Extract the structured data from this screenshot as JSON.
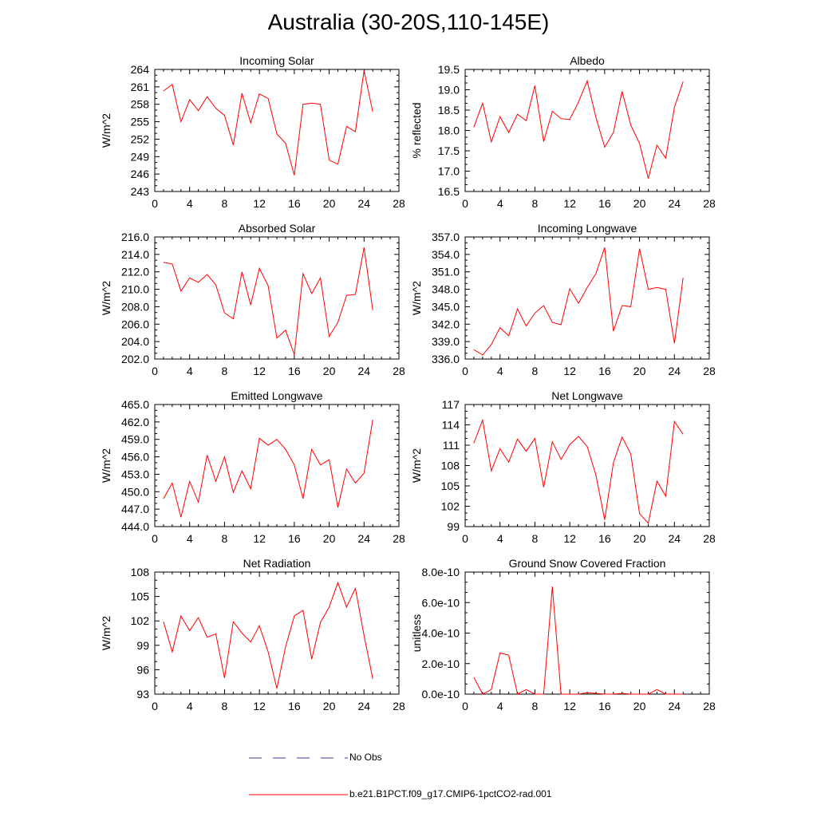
{
  "title": "Australia (30-20S,110-145E)",
  "colors": {
    "model": "#ff0000",
    "obs": "#3a3aa8",
    "axis": "#000000"
  },
  "legend": [
    {
      "label": "No Obs",
      "style": "dashed",
      "color": "#3a3aa8"
    },
    {
      "label": "b.e21.B1PCT.f09_g17.CMIP6-1pctCO2-rad.001",
      "style": "solid",
      "color": "#ff0000"
    }
  ],
  "chart_data": [
    {
      "type": "line",
      "title": "Incoming Solar",
      "ylabel": "W/m^2",
      "xlim": [
        0,
        28
      ],
      "xticks": [
        "0",
        "4",
        "8",
        "12",
        "16",
        "20",
        "24",
        "28"
      ],
      "ylim": [
        243,
        264
      ],
      "yticks": [
        "243",
        "246",
        "249",
        "252",
        "255",
        "258",
        "261",
        "264"
      ],
      "x": [
        1,
        2,
        3,
        4,
        5,
        6,
        7,
        8,
        9,
        10,
        11,
        12,
        13,
        14,
        15,
        16,
        17,
        18,
        19,
        20,
        21,
        22,
        23,
        24,
        25
      ],
      "series": [
        {
          "values": [
            260.3,
            261.4,
            255.0,
            258.8,
            256.9,
            259.3,
            257.3,
            256.1,
            251.0,
            259.9,
            254.8,
            259.8,
            259.0,
            252.9,
            251.3,
            245.8,
            258.0,
            258.2,
            258.0,
            248.4,
            247.7,
            254.2,
            253.3,
            263.8,
            256.7
          ]
        }
      ]
    },
    {
      "type": "line",
      "title": "Albedo",
      "ylabel": "% reflected",
      "xlim": [
        0,
        28
      ],
      "xticks": [
        "0",
        "4",
        "8",
        "12",
        "16",
        "20",
        "24",
        "28"
      ],
      "ylim": [
        16.5,
        19.5
      ],
      "yticks": [
        "16.5",
        "17.0",
        "17.5",
        "18.0",
        "18.5",
        "19.0",
        "19.5"
      ],
      "x": [
        1,
        2,
        3,
        4,
        5,
        6,
        7,
        8,
        9,
        10,
        11,
        12,
        13,
        14,
        15,
        16,
        17,
        18,
        19,
        20,
        21,
        22,
        23,
        24,
        25
      ],
      "series": [
        {
          "values": [
            18.08,
            18.67,
            17.72,
            18.34,
            17.95,
            18.4,
            18.24,
            19.1,
            17.73,
            18.47,
            18.29,
            18.27,
            18.7,
            19.22,
            18.32,
            17.59,
            17.95,
            18.96,
            18.13,
            17.68,
            16.82,
            17.64,
            17.32,
            18.57,
            19.2
          ]
        }
      ]
    },
    {
      "type": "line",
      "title": "Absorbed Solar",
      "ylabel": "W/m^2",
      "xlim": [
        0,
        28
      ],
      "xticks": [
        "0",
        "4",
        "8",
        "12",
        "16",
        "20",
        "24",
        "28"
      ],
      "ylim": [
        202,
        216
      ],
      "yticks": [
        "202.0",
        "204.0",
        "206.0",
        "208.0",
        "210.0",
        "212.0",
        "214.0",
        "216.0"
      ],
      "x": [
        1,
        2,
        3,
        4,
        5,
        6,
        7,
        8,
        9,
        10,
        11,
        12,
        13,
        14,
        15,
        16,
        17,
        18,
        19,
        20,
        21,
        22,
        23,
        24,
        25
      ],
      "series": [
        {
          "values": [
            213.1,
            212.9,
            209.8,
            211.3,
            210.8,
            211.7,
            210.5,
            207.3,
            206.6,
            212.0,
            208.2,
            212.4,
            210.4,
            204.4,
            205.3,
            202.5,
            211.8,
            209.5,
            211.3,
            204.6,
            206.2,
            209.3,
            209.4,
            214.8,
            207.6
          ]
        }
      ]
    },
    {
      "type": "line",
      "title": "Incoming Longwave",
      "ylabel": "W/m^2",
      "xlim": [
        0,
        28
      ],
      "xticks": [
        "0",
        "4",
        "8",
        "12",
        "16",
        "20",
        "24",
        "28"
      ],
      "ylim": [
        336,
        357
      ],
      "yticks": [
        "336.0",
        "339.0",
        "342.0",
        "345.0",
        "348.0",
        "351.0",
        "354.0",
        "357.0"
      ],
      "x": [
        1,
        2,
        3,
        4,
        5,
        6,
        7,
        8,
        9,
        10,
        11,
        12,
        13,
        14,
        15,
        16,
        17,
        18,
        19,
        20,
        21,
        22,
        23,
        24,
        25
      ],
      "series": [
        {
          "values": [
            337.6,
            336.7,
            338.5,
            341.4,
            340.0,
            344.6,
            341.7,
            343.9,
            345.2,
            342.3,
            341.9,
            348.1,
            345.6,
            348.3,
            350.7,
            355.2,
            340.8,
            345.2,
            345.0,
            355.0,
            348.0,
            348.3,
            348.0,
            338.7,
            350.0
          ]
        }
      ]
    },
    {
      "type": "line",
      "title": "Emitted Longwave",
      "ylabel": "W/m^2",
      "xlim": [
        0,
        28
      ],
      "xticks": [
        "0",
        "4",
        "8",
        "12",
        "16",
        "20",
        "24",
        "28"
      ],
      "ylim": [
        444,
        465
      ],
      "yticks": [
        "444.0",
        "447.0",
        "450.0",
        "453.0",
        "456.0",
        "459.0",
        "462.0",
        "465.0"
      ],
      "x": [
        1,
        2,
        3,
        4,
        5,
        6,
        7,
        8,
        9,
        10,
        11,
        12,
        13,
        14,
        15,
        16,
        17,
        18,
        19,
        20,
        21,
        22,
        23,
        24,
        25
      ],
      "series": [
        {
          "values": [
            448.8,
            451.5,
            445.6,
            451.8,
            448.2,
            456.3,
            451.8,
            456.0,
            449.9,
            453.6,
            450.5,
            459.2,
            458.0,
            459.0,
            457.3,
            454.6,
            448.8,
            457.3,
            454.6,
            455.5,
            447.3,
            453.9,
            451.5,
            453.2,
            462.4
          ]
        }
      ]
    },
    {
      "type": "line",
      "title": "Net Longwave",
      "ylabel": "W/m^2",
      "xlim": [
        0,
        28
      ],
      "xticks": [
        "0",
        "4",
        "8",
        "12",
        "16",
        "20",
        "24",
        "28"
      ],
      "ylim": [
        99,
        117
      ],
      "yticks": [
        "99",
        "102",
        "105",
        "108",
        "111",
        "114",
        "117"
      ],
      "x": [
        1,
        2,
        3,
        4,
        5,
        6,
        7,
        8,
        9,
        10,
        11,
        12,
        13,
        14,
        15,
        16,
        17,
        18,
        19,
        20,
        21,
        22,
        23,
        24,
        25
      ],
      "series": [
        {
          "values": [
            111.3,
            114.7,
            107.2,
            110.5,
            108.5,
            111.9,
            110.1,
            112.0,
            104.8,
            111.5,
            108.9,
            111.1,
            112.3,
            110.8,
            106.6,
            100.0,
            108.4,
            112.2,
            109.7,
            100.9,
            99.5,
            105.7,
            103.5,
            114.5,
            112.6
          ]
        }
      ]
    },
    {
      "type": "line",
      "title": "Net Radiation",
      "ylabel": "W/m^2",
      "xlim": [
        0,
        28
      ],
      "xticks": [
        "0",
        "4",
        "8",
        "12",
        "16",
        "20",
        "24",
        "28"
      ],
      "ylim": [
        93,
        108
      ],
      "yticks": [
        "93",
        "96",
        "99",
        "102",
        "105",
        "108"
      ],
      "x": [
        1,
        2,
        3,
        4,
        5,
        6,
        7,
        8,
        9,
        10,
        11,
        12,
        13,
        14,
        15,
        16,
        17,
        18,
        19,
        20,
        21,
        22,
        23,
        24,
        25
      ],
      "series": [
        {
          "values": [
            101.9,
            98.2,
            102.6,
            100.8,
            102.4,
            100.0,
            100.4,
            95.0,
            101.9,
            100.5,
            99.4,
            101.4,
            98.2,
            93.7,
            98.8,
            102.6,
            103.3,
            97.3,
            101.8,
            103.7,
            106.7,
            103.7,
            106.0,
            100.2,
            94.9
          ]
        }
      ]
    },
    {
      "type": "line",
      "title": "Ground Snow Covered Fraction",
      "ylabel": "unitless",
      "xlim": [
        0,
        28
      ],
      "xticks": [
        "0",
        "4",
        "8",
        "12",
        "16",
        "20",
        "24",
        "28"
      ],
      "ylim": [
        0,
        8e-10
      ],
      "yticks": [
        "0.0e-10",
        "2.0e-10",
        "4.0e-10",
        "6.0e-10",
        "8.0e-10"
      ],
      "x": [
        1,
        2,
        3,
        4,
        5,
        6,
        7,
        8,
        9,
        10,
        11,
        12,
        13,
        14,
        15,
        16,
        17,
        18,
        19,
        20,
        21,
        22,
        23,
        24,
        25
      ],
      "series": [
        {
          "values": [
            1.1e-10,
            0,
            3e-11,
            2.7e-10,
            2.55e-10,
            0,
            3e-11,
            0,
            0,
            7.05e-10,
            0,
            0,
            0,
            1e-11,
            5e-12,
            0,
            0,
            5e-12,
            0,
            0,
            0,
            3e-11,
            0,
            0,
            0
          ]
        }
      ]
    }
  ]
}
